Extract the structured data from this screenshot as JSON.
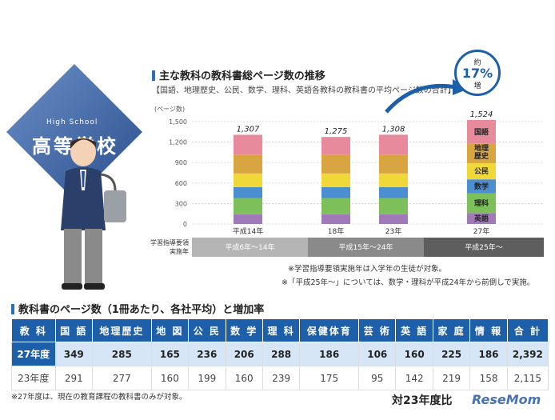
{
  "badge": {
    "label": "High School",
    "title": "高等学校"
  },
  "colors": {
    "japanese": "#e68a9c",
    "geo_history": "#d9a541",
    "civics": "#f0d838",
    "math": "#4b8fd1",
    "science": "#7dbf5b",
    "english": "#a07ab8",
    "blue": "#1d5fa8",
    "ruler_a": "#b5b5b5",
    "ruler_b": "#8a8a8a",
    "ruler_c": "#5e5e5e"
  },
  "chart_title": "主な教科の教科書総ページ数の推移",
  "chart_subtitle": "【国語、地理歴史、公民、数学、理科、英語各教科の教科書の平均ページ数の合計】",
  "increase": {
    "prefix": "約",
    "value": "17%",
    "suffix": "増"
  },
  "chart_data": {
    "type": "bar",
    "stacked": true,
    "ylabel": "(ページ数)",
    "ylim": [
      0,
      1500
    ],
    "yticks": [
      0,
      300,
      600,
      900,
      1200,
      1500
    ],
    "categories": [
      "平成14年",
      "18年",
      "23年",
      "27年"
    ],
    "totals": [
      1307,
      1275,
      1308,
      1524
    ],
    "total_labels": [
      "1,307",
      "1,275",
      "1,308",
      "1,524"
    ],
    "series": [
      {
        "name": "英語",
        "key": "english",
        "values": [
          142,
          142,
          142,
          160
        ]
      },
      {
        "name": "理科",
        "key": "science",
        "values": [
          239,
          239,
          239,
          288
        ]
      },
      {
        "name": "数学",
        "key": "math",
        "values": [
          160,
          160,
          160,
          206
        ]
      },
      {
        "name": "公民",
        "key": "civics",
        "values": [
          199,
          199,
          199,
          236
        ]
      },
      {
        "name": "地理歴史",
        "key": "geo_history",
        "values": [
          277,
          277,
          277,
          285
        ]
      },
      {
        "name": "国語",
        "key": "japanese",
        "values": [
          290,
          258,
          291,
          349
        ]
      }
    ],
    "segment_labels": [
      "英語",
      "理科",
      "数学",
      "公民",
      "地理\n歴史",
      "国語"
    ],
    "period_label": "学習指導要領\n実施年",
    "periods": [
      "平成6年～14年",
      "平成15年～24年",
      "平成25年～"
    ]
  },
  "notes": [
    "※学習指導要領実施年は入学年の生徒が対象。",
    "※「平成25年～」については、数学・理科が平成24年から前倒しで実施。"
  ],
  "table_title": "教科書のページ数（1冊あたり、各社平均）と増加率",
  "table": {
    "headers": [
      "教 科",
      "国 語",
      "地理歴史",
      "地 図",
      "公 民",
      "数 学",
      "理 科",
      "保健体育",
      "芸 術",
      "英 語",
      "家 庭",
      "情 報",
      "合 計"
    ],
    "rows": [
      [
        "27年度",
        "349",
        "285",
        "165",
        "236",
        "206",
        "288",
        "186",
        "106",
        "160",
        "225",
        "186",
        "2,392"
      ],
      [
        "23年度",
        "291",
        "277",
        "160",
        "199",
        "160",
        "239",
        "175",
        "95",
        "142",
        "219",
        "158",
        "2,115"
      ]
    ]
  },
  "footnote": "※27年度は、現在の教育課程の教科書のみが対象。",
  "compare_label": "対23年度比",
  "logo": "ReseMom"
}
